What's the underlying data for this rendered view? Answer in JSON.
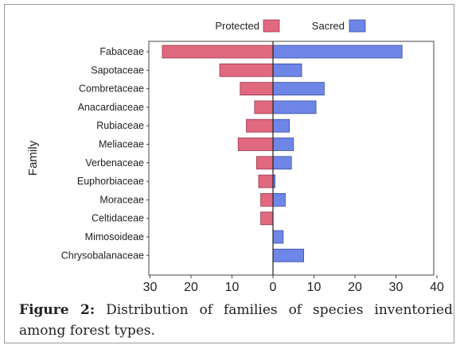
{
  "chart_data": {
    "type": "bar",
    "orientation": "horizontal",
    "layout": "diverging",
    "ylabel": "Family",
    "categories": [
      "Fabaceae",
      "Sapotaceae",
      "Combretaceae",
      "Anacardiaceae",
      "Rubiaceae",
      "Meliaceae",
      "Verbenaceae",
      "Euphorbiaceae",
      "Moraceae",
      "Celtidaceae",
      "Mimosoideae",
      "Chrysobalanaceae"
    ],
    "series": [
      {
        "name": "Protected",
        "values": [
          27,
          13,
          8,
          4.5,
          6.5,
          8.5,
          4,
          3.5,
          3,
          3,
          0,
          0
        ],
        "direction": "left"
      },
      {
        "name": "Sacred",
        "values": [
          31.5,
          7,
          12.5,
          10.5,
          4,
          5,
          4.5,
          0.5,
          3,
          0,
          2.5,
          7.5
        ],
        "direction": "right"
      }
    ],
    "xticks": [
      "30",
      "20",
      "10",
      "0",
      "10",
      "20",
      "30",
      "40"
    ],
    "xlim": [
      -30,
      40
    ],
    "legend_position": "top",
    "grid": false
  },
  "colors": {
    "protected": "#e0687f",
    "sacred": "#6e86e6"
  },
  "caption": {
    "label": "Figure 2:",
    "text": " Distribution of families of species inventoried among forest types."
  }
}
